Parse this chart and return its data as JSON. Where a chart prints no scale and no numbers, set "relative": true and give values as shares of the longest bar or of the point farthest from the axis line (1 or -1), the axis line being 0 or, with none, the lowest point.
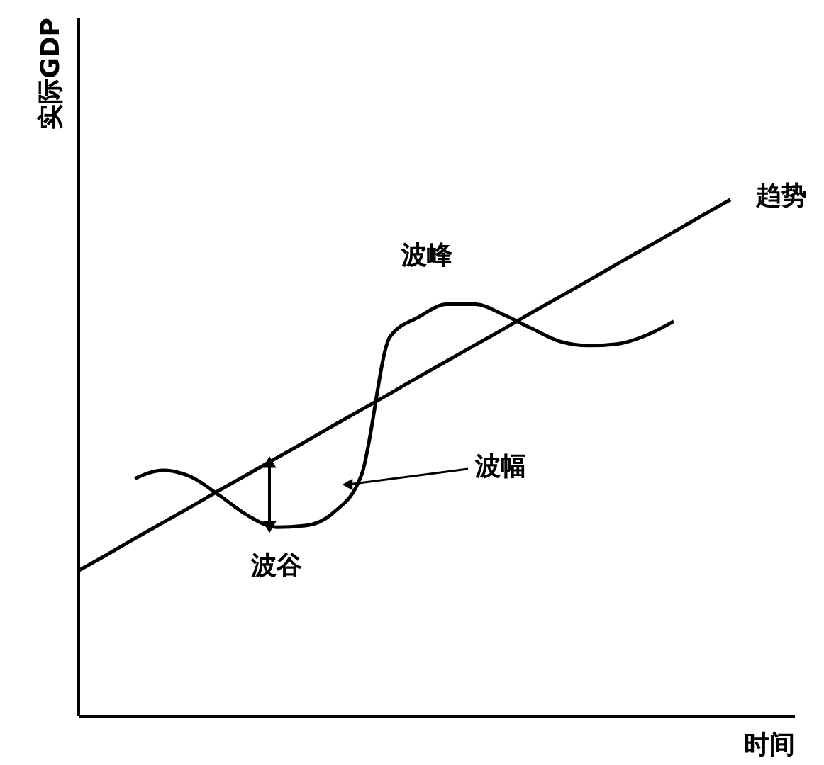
{
  "chart_data": {
    "type": "line",
    "relative": true,
    "xlabel": "时间",
    "ylabel": "实际GDP",
    "categories": [
      null,
      null,
      null,
      null,
      null,
      null,
      null,
      null,
      null,
      null,
      null,
      null,
      null,
      null,
      null,
      null,
      null,
      null,
      null,
      null,
      null,
      null,
      null,
      null
    ],
    "series": [
      {
        "name": "趋势",
        "color": "#000000",
        "values": [
          0.28,
          0.311,
          0.343,
          0.374,
          0.405,
          0.437,
          0.468,
          0.499,
          0.53,
          0.562,
          0.593,
          0.624,
          0.656,
          0.687,
          0.718,
          0.749,
          0.781,
          0.812,
          0.843,
          0.875,
          0.906,
          0.937,
          0.969,
          1.0
        ]
      },
      {
        "color": "#000000",
        "values": [
          null,
          null,
          0.459,
          0.475,
          0.462,
          0.426,
          0.387,
          0.365,
          0.368,
          0.393,
          0.467,
          0.734,
          0.772,
          0.797,
          0.797,
          0.777,
          0.75,
          0.725,
          0.717,
          0.72,
          0.736,
          0.764,
          null,
          null
        ]
      }
    ],
    "annotations": [
      "波峰",
      "波谷",
      "波幅"
    ],
    "grid": false,
    "marker": "none",
    "line_style": "solid"
  }
}
